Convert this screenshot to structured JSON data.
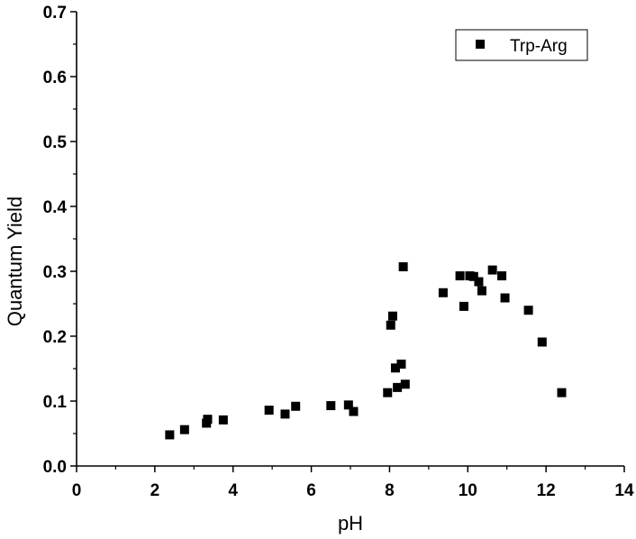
{
  "chart_data": {
    "type": "scatter",
    "xlabel": "pH",
    "ylabel": "Quantum Yield",
    "xlim": [
      0,
      14
    ],
    "ylim": [
      0.0,
      0.7
    ],
    "xticks": [
      "0",
      "2",
      "4",
      "6",
      "8",
      "10",
      "12",
      "14"
    ],
    "yticks": [
      "0.0",
      "0.1",
      "0.2",
      "0.3",
      "0.4",
      "0.5",
      "0.6",
      "0.7"
    ],
    "grid": false,
    "legend_position": "top-right",
    "series": [
      {
        "name": "Trp-Arg",
        "marker": "square",
        "color": "#000000",
        "points": [
          [
            2.38,
            0.048
          ],
          [
            2.76,
            0.056
          ],
          [
            3.32,
            0.066
          ],
          [
            3.35,
            0.072
          ],
          [
            3.75,
            0.071
          ],
          [
            4.92,
            0.086
          ],
          [
            5.33,
            0.08
          ],
          [
            5.6,
            0.092
          ],
          [
            6.5,
            0.093
          ],
          [
            6.95,
            0.094
          ],
          [
            7.08,
            0.084
          ],
          [
            7.95,
            0.113
          ],
          [
            8.03,
            0.217
          ],
          [
            8.08,
            0.231
          ],
          [
            8.15,
            0.151
          ],
          [
            8.2,
            0.121
          ],
          [
            8.3,
            0.157
          ],
          [
            8.35,
            0.307
          ],
          [
            8.4,
            0.126
          ],
          [
            9.37,
            0.267
          ],
          [
            9.8,
            0.293
          ],
          [
            9.9,
            0.246
          ],
          [
            10.05,
            0.293
          ],
          [
            10.15,
            0.292
          ],
          [
            10.28,
            0.284
          ],
          [
            10.36,
            0.27
          ],
          [
            10.63,
            0.302
          ],
          [
            10.87,
            0.293
          ],
          [
            10.95,
            0.259
          ],
          [
            11.55,
            0.24
          ],
          [
            11.9,
            0.191
          ],
          [
            12.4,
            0.113
          ]
        ]
      }
    ]
  }
}
